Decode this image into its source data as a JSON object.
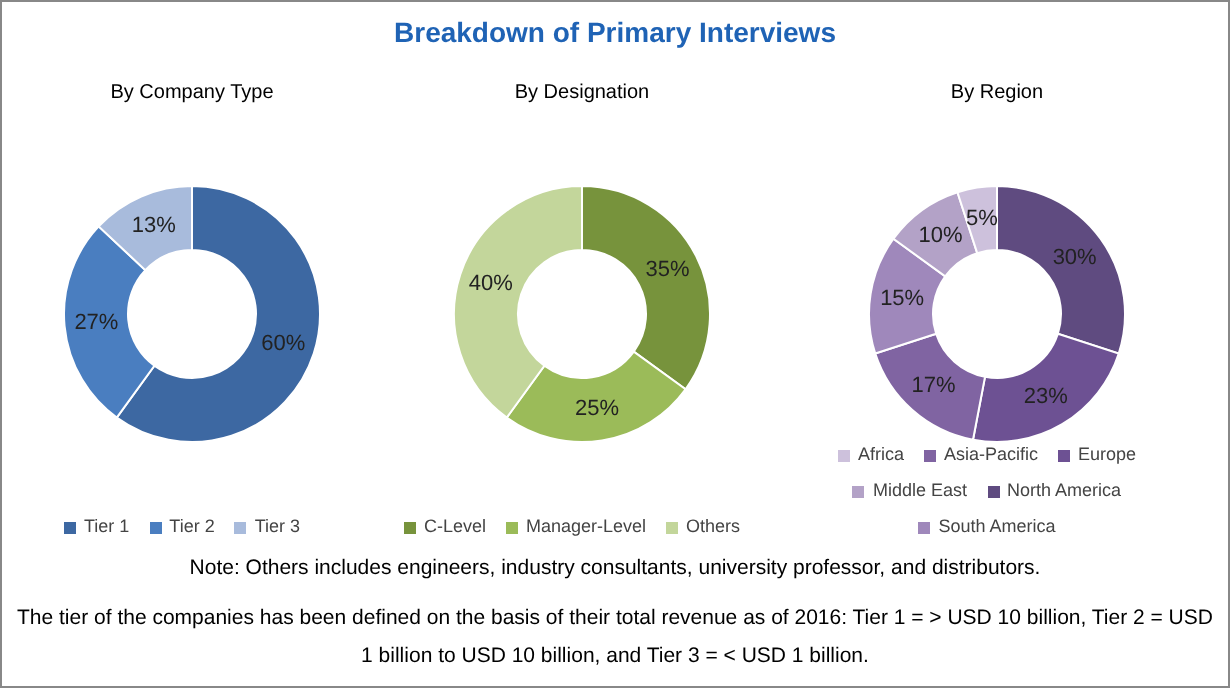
{
  "chart_data": [
    {
      "type": "other",
      "title": "Breakdown of Primary Interviews",
      "annotations": [
        "Note: Others includes engineers, industry consultants, university professor, and distributors.",
        "The tier of the companies has been defined on the basis of their total revenue as of 2016: Tier 1 = > USD 10 billion, Tier 2 = USD 1 billion to USD 10 billion, and Tier 3 = < USD 1 billion."
      ]
    },
    {
      "type": "donut",
      "title": "By Company Type",
      "categories": [
        "Tier 1",
        "Tier 2",
        "Tier 3"
      ],
      "values": [
        60,
        27,
        13
      ],
      "value_labels": [
        "60%",
        "27%",
        "13%"
      ],
      "colors": [
        "#3d68a2",
        "#4a7ec0",
        "#a8bbdc"
      ],
      "legend": "bottom"
    },
    {
      "type": "donut",
      "title": "By Designation",
      "categories": [
        "C-Level",
        "Manager-Level",
        "Others"
      ],
      "values": [
        35,
        25,
        40
      ],
      "value_labels": [
        "35%",
        "25%",
        "40%"
      ],
      "colors": [
        "#77933c",
        "#9bbb59",
        "#c3d69b"
      ],
      "legend": "bottom"
    },
    {
      "type": "donut",
      "title": "By Region",
      "categories": [
        "North America",
        "Europe",
        "Asia-Pacific",
        "South America",
        "Middle East",
        "Africa"
      ],
      "values": [
        30,
        23,
        17,
        15,
        10,
        5
      ],
      "value_labels": [
        "30%",
        "23%",
        "17%",
        "15%",
        "10%",
        "5%"
      ],
      "colors": [
        "#5f4b80",
        "#6d5193",
        "#8064a2",
        "#9f88bb",
        "#b3a2c7",
        "#cdc1dc"
      ],
      "legend": "bottom"
    }
  ]
}
